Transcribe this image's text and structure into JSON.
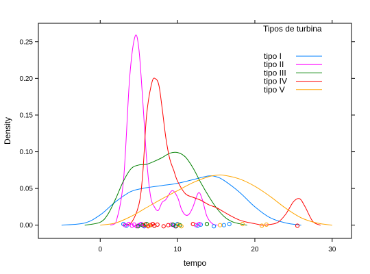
{
  "chart_data": {
    "type": "line",
    "xlabel": "tempo",
    "ylabel": "Density",
    "xlim": [
      -8,
      32.5
    ],
    "ylim": [
      -0.018,
      0.275
    ],
    "x_ticks": [
      0,
      10,
      20,
      30
    ],
    "y_ticks": [
      0.0,
      0.05,
      0.1,
      0.15,
      0.2,
      0.25
    ],
    "y_tick_labels": [
      "0.00",
      "0.05",
      "0.10",
      "0.15",
      "0.20",
      "0.25"
    ],
    "legend": {
      "title": "Tipos de turbina",
      "placement": "top-right"
    },
    "series": [
      {
        "name": "tipo I",
        "color": "#0080ff",
        "density": [
          [
            -5,
            0
          ],
          [
            -2,
            0.003
          ],
          [
            0,
            0.014
          ],
          [
            2,
            0.032
          ],
          [
            4,
            0.046
          ],
          [
            6,
            0.051
          ],
          [
            8,
            0.054
          ],
          [
            10,
            0.057
          ],
          [
            12,
            0.062
          ],
          [
            14,
            0.067
          ],
          [
            15,
            0.066
          ],
          [
            16,
            0.061
          ],
          [
            18,
            0.045
          ],
          [
            20,
            0.025
          ],
          [
            22,
            0.01
          ],
          [
            24,
            0.003
          ],
          [
            26,
            0
          ]
        ],
        "points": [
          3.0,
          3.4,
          5.2,
          5.7,
          9.5,
          10.0,
          12.6,
          13.0,
          14.7,
          16.0,
          16.7
        ]
      },
      {
        "name": "tipo II",
        "color": "#ff00ff",
        "density": [
          [
            1.3,
            0
          ],
          [
            2,
            0.003
          ],
          [
            3,
            0.06
          ],
          [
            3.8,
            0.2
          ],
          [
            4.5,
            0.257
          ],
          [
            5,
            0.24
          ],
          [
            5.5,
            0.17
          ],
          [
            6,
            0.09
          ],
          [
            6.5,
            0.04
          ],
          [
            7,
            0.025
          ],
          [
            7.5,
            0.02
          ],
          [
            8,
            0.031
          ],
          [
            8.5,
            0.035
          ],
          [
            9.3,
            0.047
          ],
          [
            10,
            0.038
          ],
          [
            10.5,
            0.022
          ],
          [
            11,
            0.014
          ],
          [
            11.5,
            0.015
          ],
          [
            12,
            0.025
          ],
          [
            12.7,
            0.044
          ],
          [
            13.2,
            0.035
          ],
          [
            13.8,
            0.012
          ],
          [
            14.5,
            0.002
          ],
          [
            15.2,
            0
          ]
        ],
        "points": [
          3.2,
          3.7,
          4.1,
          4.4,
          4.7,
          5.0,
          5.3,
          5.6,
          9.2,
          9.7,
          12.4,
          12.8
        ]
      },
      {
        "name": "tipo III",
        "color": "#008000",
        "density": [
          [
            -2,
            0
          ],
          [
            0,
            0.004
          ],
          [
            1,
            0.015
          ],
          [
            2,
            0.036
          ],
          [
            3,
            0.06
          ],
          [
            4,
            0.077
          ],
          [
            5,
            0.082
          ],
          [
            6,
            0.083
          ],
          [
            7,
            0.087
          ],
          [
            8,
            0.092
          ],
          [
            9,
            0.098
          ],
          [
            10,
            0.099
          ],
          [
            11,
            0.093
          ],
          [
            12,
            0.078
          ],
          [
            13,
            0.058
          ],
          [
            14,
            0.04
          ],
          [
            15,
            0.024
          ],
          [
            16,
            0.012
          ],
          [
            17,
            0.005
          ],
          [
            18,
            0.002
          ],
          [
            19,
            0
          ]
        ],
        "points": [
          4.9,
          5.5,
          6.0,
          7.0,
          9.4,
          9.8,
          10.3,
          13.8
        ]
      },
      {
        "name": "tipo IV",
        "color": "#ff0000",
        "density": [
          [
            3,
            0
          ],
          [
            4,
            0.003
          ],
          [
            5,
            0.028
          ],
          [
            5.5,
            0.07
          ],
          [
            6,
            0.15
          ],
          [
            6.7,
            0.195
          ],
          [
            7.2,
            0.199
          ],
          [
            7.6,
            0.19
          ],
          [
            8,
            0.16
          ],
          [
            8.5,
            0.118
          ],
          [
            9,
            0.09
          ],
          [
            9.5,
            0.075
          ],
          [
            10,
            0.06
          ],
          [
            11,
            0.043
          ],
          [
            12,
            0.038
          ],
          [
            13,
            0.034
          ],
          [
            14,
            0.028
          ],
          [
            15,
            0.024
          ],
          [
            16,
            0.018
          ],
          [
            17,
            0.012
          ],
          [
            18,
            0.007
          ],
          [
            19,
            0.004
          ],
          [
            20,
            0.002
          ],
          [
            21,
            0
          ],
          [
            22,
            0.001
          ],
          [
            23,
            0.004
          ],
          [
            24,
            0.015
          ],
          [
            25,
            0.032
          ],
          [
            25.8,
            0.036
          ],
          [
            26.5,
            0.025
          ],
          [
            27.5,
            0.005
          ],
          [
            28.5,
            0
          ]
        ],
        "points": [
          5.8,
          6.2,
          6.5,
          6.8,
          7.0,
          7.4,
          8.2,
          8.8,
          12.0,
          25.5
        ]
      },
      {
        "name": "tipo V",
        "color": "#ffa500",
        "density": [
          [
            0,
            0
          ],
          [
            2,
            0.003
          ],
          [
            4,
            0.012
          ],
          [
            6,
            0.024
          ],
          [
            8,
            0.036
          ],
          [
            10,
            0.047
          ],
          [
            12,
            0.058
          ],
          [
            14,
            0.066
          ],
          [
            15,
            0.068
          ],
          [
            16,
            0.068
          ],
          [
            18,
            0.063
          ],
          [
            20,
            0.053
          ],
          [
            22,
            0.039
          ],
          [
            24,
            0.023
          ],
          [
            26,
            0.01
          ],
          [
            28,
            0.003
          ],
          [
            30,
            0
          ]
        ],
        "points": [
          6.3,
          10.1,
          10.5,
          15.5,
          18.4,
          20.9,
          21.5
        ]
      }
    ]
  }
}
